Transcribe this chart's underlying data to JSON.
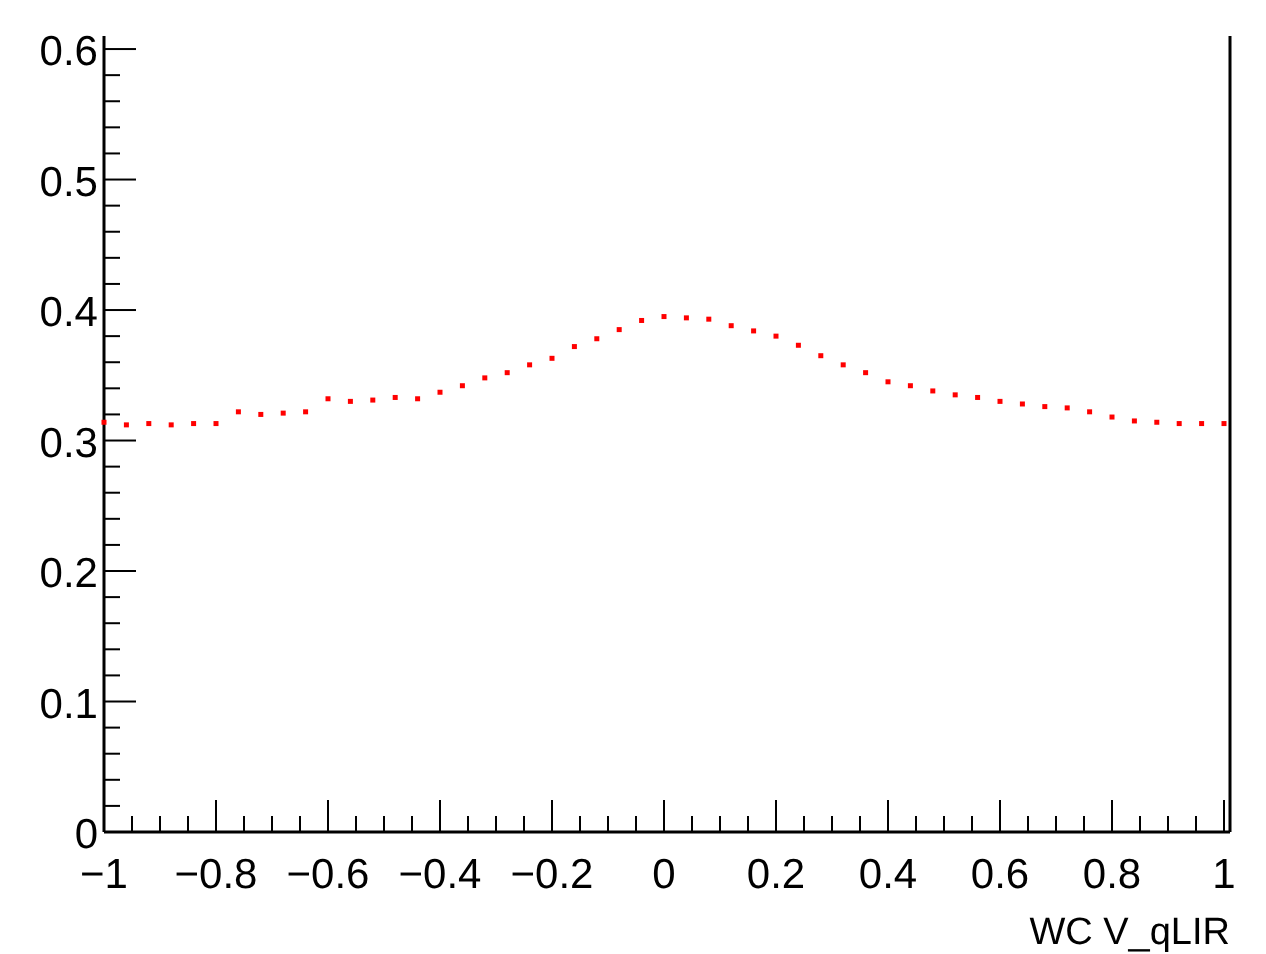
{
  "chart_data": {
    "type": "scatter",
    "xlabel": "WC V_qLIR",
    "marker": "square",
    "grid": false,
    "xlim": [
      -1,
      1
    ],
    "ylim": [
      0,
      0.61
    ],
    "xticks": [
      -1,
      {
        "value": -0.95,
        "label": null
      },
      {
        "value": -0.9,
        "label": null
      },
      {
        "value": -0.85,
        "label": null
      },
      -0.8,
      {
        "value": -0.75,
        "label": null
      },
      {
        "value": -0.7,
        "label": null
      },
      {
        "value": -0.65,
        "label": null
      },
      -0.6,
      {
        "value": -0.55,
        "label": null
      },
      {
        "value": -0.5,
        "label": null
      },
      {
        "value": -0.45,
        "label": null
      },
      -0.4,
      {
        "value": -0.35,
        "label": null
      },
      {
        "value": -0.3,
        "label": null
      },
      {
        "value": -0.25,
        "label": null
      },
      -0.2,
      {
        "value": -0.15,
        "label": null
      },
      {
        "value": -0.1,
        "label": null
      },
      {
        "value": -0.05,
        "label": null
      },
      0,
      {
        "value": 0.05,
        "label": null
      },
      {
        "value": 0.1,
        "label": null
      },
      {
        "value": 0.15,
        "label": null
      },
      0.2,
      {
        "value": 0.25,
        "label": null
      },
      {
        "value": 0.3,
        "label": null
      },
      {
        "value": 0.35,
        "label": null
      },
      0.4,
      {
        "value": 0.45,
        "label": null
      },
      {
        "value": 0.5,
        "label": null
      },
      {
        "value": 0.55,
        "label": null
      },
      0.6,
      {
        "value": 0.65,
        "label": null
      },
      {
        "value": 0.7,
        "label": null
      },
      {
        "value": 0.75,
        "label": null
      },
      0.8,
      {
        "value": 0.85,
        "label": null
      },
      {
        "value": 0.9,
        "label": null
      },
      {
        "value": 0.95,
        "label": null
      },
      1
    ],
    "yticks": [
      0,
      {
        "value": 0.02,
        "label": null
      },
      {
        "value": 0.04,
        "label": null
      },
      {
        "value": 0.06,
        "label": null
      },
      {
        "value": 0.08,
        "label": null
      },
      0.1,
      {
        "value": 0.12,
        "label": null
      },
      {
        "value": 0.14,
        "label": null
      },
      {
        "value": 0.16,
        "label": null
      },
      {
        "value": 0.18,
        "label": null
      },
      0.2,
      {
        "value": 0.22,
        "label": null
      },
      {
        "value": 0.24,
        "label": null
      },
      {
        "value": 0.26,
        "label": null
      },
      {
        "value": 0.28,
        "label": null
      },
      0.3,
      {
        "value": 0.32,
        "label": null
      },
      {
        "value": 0.34,
        "label": null
      },
      {
        "value": 0.36,
        "label": null
      },
      {
        "value": 0.38,
        "label": null
      },
      0.4,
      {
        "value": 0.42,
        "label": null
      },
      {
        "value": 0.44,
        "label": null
      },
      {
        "value": 0.46,
        "label": null
      },
      {
        "value": 0.48,
        "label": null
      },
      0.5,
      {
        "value": 0.52,
        "label": null
      },
      {
        "value": 0.54,
        "label": null
      },
      {
        "value": 0.56,
        "label": null
      },
      {
        "value": 0.58,
        "label": null
      },
      0.6
    ],
    "series": [
      {
        "color": "#ff0000",
        "x": [
          -1,
          -0.96,
          -0.92,
          -0.88,
          -0.84,
          -0.8,
          -0.76,
          -0.72,
          -0.68,
          -0.64,
          -0.6,
          -0.56,
          -0.52,
          -0.48,
          -0.44,
          -0.4,
          -0.36,
          -0.32,
          -0.28,
          -0.24,
          -0.2,
          -0.16,
          -0.12,
          -0.08,
          -0.04,
          0,
          0.04,
          0.08,
          0.12,
          0.16,
          0.2,
          0.24,
          0.28,
          0.32,
          0.36,
          0.4,
          0.44,
          0.48,
          0.52,
          0.56,
          0.6,
          0.64,
          0.68,
          0.72,
          0.76,
          0.8,
          0.84,
          0.88,
          0.92,
          0.96,
          1
        ],
        "values": [
          0.314,
          0.312,
          0.313,
          0.312,
          0.313,
          0.313,
          0.322,
          0.32,
          0.321,
          0.322,
          0.332,
          0.33,
          0.331,
          0.333,
          0.332,
          0.337,
          0.342,
          0.348,
          0.352,
          0.358,
          0.363,
          0.372,
          0.378,
          0.385,
          0.392,
          0.395,
          0.394,
          0.393,
          0.388,
          0.384,
          0.38,
          0.373,
          0.365,
          0.358,
          0.352,
          0.345,
          0.342,
          0.338,
          0.335,
          0.333,
          0.33,
          0.328,
          0.326,
          0.325,
          0.322,
          0.318,
          0.315,
          0.314,
          0.313,
          0.313,
          0.313
        ]
      }
    ]
  }
}
